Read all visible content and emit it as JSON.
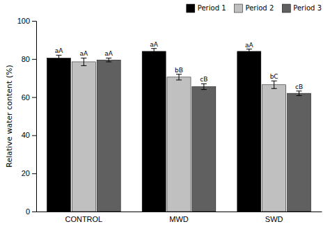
{
  "chart_data": {
    "type": "bar",
    "categories": [
      "CONTROL",
      "MWD",
      "SWD"
    ],
    "series": [
      {
        "name": "Period 1",
        "color": "#000000",
        "values": [
          80.5,
          84.0,
          84.0
        ],
        "errors": [
          1.5,
          1.5,
          1.2
        ],
        "annotations": [
          "aA",
          "aA",
          "aA"
        ]
      },
      {
        "name": "Period 2",
        "color": "#c0c0c0",
        "values": [
          78.5,
          70.5,
          66.5
        ],
        "errors": [
          2.0,
          1.5,
          2.0
        ],
        "annotations": [
          "aA",
          "bB",
          "bC"
        ]
      },
      {
        "name": "Period 3",
        "color": "#606060",
        "values": [
          79.5,
          65.5,
          62.0
        ],
        "errors": [
          1.0,
          1.5,
          1.2
        ],
        "annotations": [
          "aA",
          "cB",
          "cB"
        ]
      }
    ],
    "ylabel": "Relative water content (%)",
    "ylim": [
      0,
      100
    ],
    "yticks": [
      0,
      20,
      40,
      60,
      80,
      100
    ],
    "grid": false,
    "legend": "upper right"
  }
}
